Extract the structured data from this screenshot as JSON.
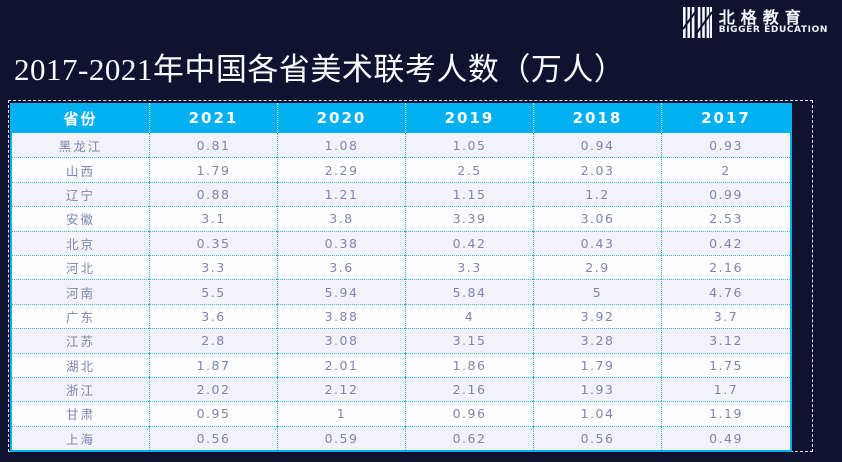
{
  "title": "2017-2021年中国各省美术联考人数（万人）",
  "logo": {
    "name_cn": "北格教育",
    "name_en": "BIGGER EDUCATION"
  },
  "colors": {
    "background": "#0f1330",
    "accent_cyan": "#00b0f0",
    "row_alt": "#f3f1f9",
    "body_text": "#7e86a9"
  },
  "table": {
    "columns": [
      "省份",
      "2021",
      "2020",
      "2019",
      "2018",
      "2017"
    ],
    "rows": [
      {
        "province": "黑龙江",
        "values": [
          "0.81",
          "1.08",
          "1.05",
          "0.94",
          "0.93"
        ]
      },
      {
        "province": "山西",
        "values": [
          "1.79",
          "2.29",
          "2.5",
          "2.03",
          "2"
        ]
      },
      {
        "province": "辽宁",
        "values": [
          "0.88",
          "1.21",
          "1.15",
          "1.2",
          "0.99"
        ]
      },
      {
        "province": "安徽",
        "values": [
          "3.1",
          "3.8",
          "3.39",
          "3.06",
          "2.53"
        ]
      },
      {
        "province": "北京",
        "values": [
          "0.35",
          "0.38",
          "0.42",
          "0.43",
          "0.42"
        ]
      },
      {
        "province": "河北",
        "values": [
          "3.3",
          "3.6",
          "3.3",
          "2.9",
          "2.16"
        ]
      },
      {
        "province": "河南",
        "values": [
          "5.5",
          "5.94",
          "5.84",
          "5",
          "4.76"
        ]
      },
      {
        "province": "广东",
        "values": [
          "3.6",
          "3.88",
          "4",
          "3.92",
          "3.7"
        ]
      },
      {
        "province": "江苏",
        "values": [
          "2.8",
          "3.08",
          "3.15",
          "3.28",
          "3.12"
        ]
      },
      {
        "province": "湖北",
        "values": [
          "1.87",
          "2.01",
          "1.86",
          "1.79",
          "1.75"
        ]
      },
      {
        "province": "浙江",
        "values": [
          "2.02",
          "2.12",
          "2.16",
          "1.93",
          "1.7"
        ]
      },
      {
        "province": "甘肃",
        "values": [
          "0.95",
          "1",
          "0.96",
          "1.04",
          "1.19"
        ]
      },
      {
        "province": "上海",
        "values": [
          "0.56",
          "0.59",
          "0.62",
          "0.56",
          "0.49"
        ]
      }
    ]
  }
}
